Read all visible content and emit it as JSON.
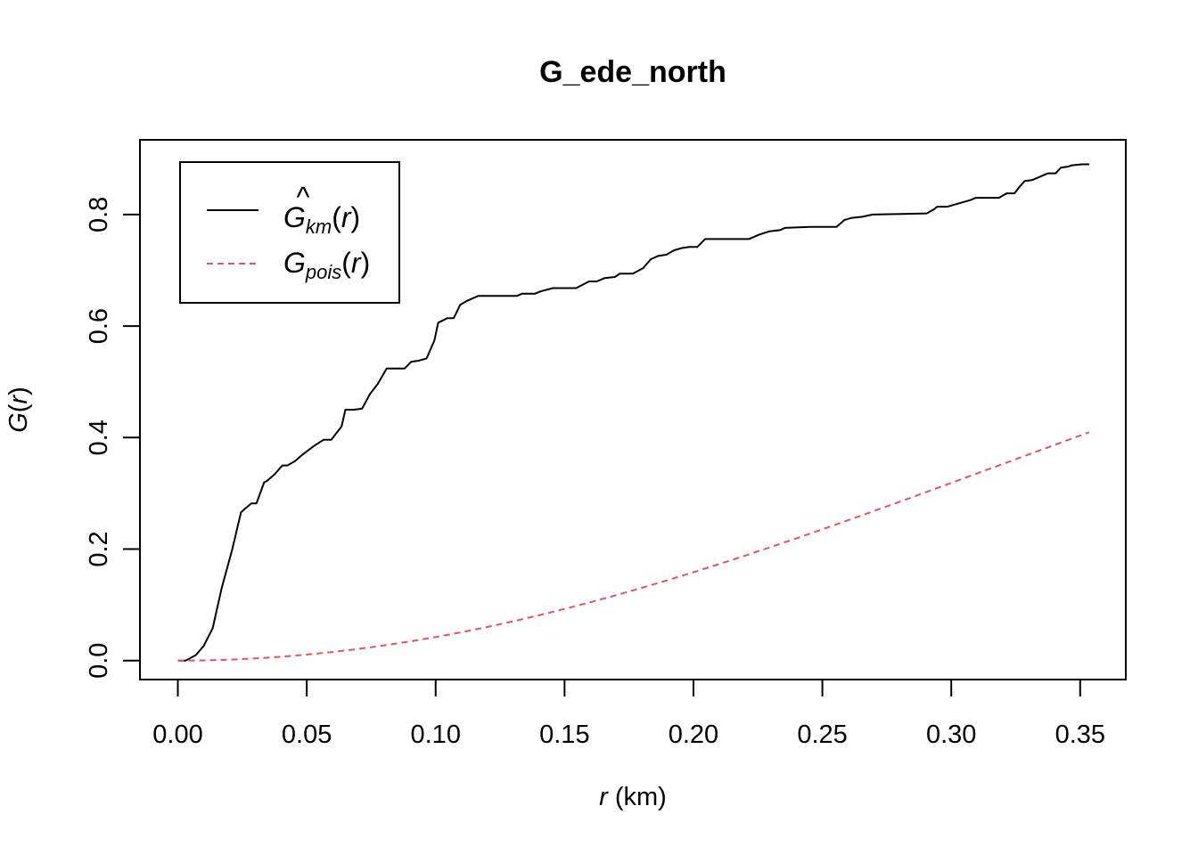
{
  "chart_data": {
    "type": "line",
    "title": "G_ede_north",
    "xlabel": {
      "var": "r",
      "unit": " (km)"
    },
    "ylabel": {
      "main": "G",
      "paren_open": "(",
      "var": "r",
      "paren_close": ")"
    },
    "xlim": [
      -0.0147,
      0.3677
    ],
    "ylim": [
      -0.034,
      0.934
    ],
    "xticks": [
      0.0,
      0.05,
      0.1,
      0.15,
      0.2,
      0.25,
      0.3,
      0.35
    ],
    "xtick_labels": [
      "0.00",
      "0.05",
      "0.10",
      "0.15",
      "0.20",
      "0.25",
      "0.30",
      "0.35"
    ],
    "yticks": [
      0.0,
      0.2,
      0.4,
      0.6,
      0.8
    ],
    "ytick_labels": [
      "0.0",
      "0.2",
      "0.4",
      "0.6",
      "0.8"
    ],
    "legend_position": "top-left",
    "grid": false,
    "series": [
      {
        "name": "G km (r)",
        "legend": {
          "main": "G",
          "hat": "^",
          "sub": "km",
          "paren_open": "(",
          "var": "r",
          "paren_close": ")"
        },
        "color": "#000000",
        "dash": "solid",
        "x": [
          0.0,
          0.003,
          0.007,
          0.01,
          0.0135,
          0.017,
          0.021,
          0.0245,
          0.026,
          0.0285,
          0.0305,
          0.0335,
          0.0345,
          0.0375,
          0.0405,
          0.0425,
          0.0455,
          0.048,
          0.0525,
          0.0565,
          0.0595,
          0.0635,
          0.065,
          0.0685,
          0.0715,
          0.0745,
          0.0775,
          0.081,
          0.0855,
          0.088,
          0.0905,
          0.0935,
          0.0965,
          0.0995,
          0.101,
          0.1045,
          0.107,
          0.1095,
          0.1125,
          0.1165,
          0.1205,
          0.1315,
          0.1335,
          0.1385,
          0.1405,
          0.1455,
          0.1515,
          0.1545,
          0.1595,
          0.1625,
          0.1655,
          0.1695,
          0.1715,
          0.1765,
          0.1805,
          0.1835,
          0.1865,
          0.1895,
          0.1925,
          0.1955,
          0.1985,
          0.2015,
          0.2045,
          0.2125,
          0.2215,
          0.2255,
          0.2295,
          0.2335,
          0.2355,
          0.2455,
          0.2555,
          0.2585,
          0.2615,
          0.2655,
          0.2695,
          0.2905,
          0.2935,
          0.2945,
          0.2985,
          0.3015,
          0.3075,
          0.3095,
          0.3185,
          0.3215,
          0.3245,
          0.3265,
          0.3285,
          0.3315,
          0.3345,
          0.3375,
          0.3405,
          0.3425,
          0.3455,
          0.3465,
          0.3505,
          0.3535
        ],
        "y": [
          0.0,
          0.0,
          0.01,
          0.026,
          0.058,
          0.13,
          0.198,
          0.266,
          0.272,
          0.282,
          0.282,
          0.32,
          0.322,
          0.334,
          0.35,
          0.35,
          0.358,
          0.368,
          0.384,
          0.396,
          0.396,
          0.42,
          0.45,
          0.45,
          0.452,
          0.478,
          0.496,
          0.524,
          0.524,
          0.524,
          0.536,
          0.538,
          0.542,
          0.574,
          0.606,
          0.614,
          0.614,
          0.638,
          0.646,
          0.654,
          0.654,
          0.654,
          0.658,
          0.658,
          0.662,
          0.668,
          0.668,
          0.668,
          0.68,
          0.68,
          0.686,
          0.688,
          0.694,
          0.694,
          0.704,
          0.72,
          0.726,
          0.728,
          0.736,
          0.74,
          0.742,
          0.742,
          0.756,
          0.756,
          0.756,
          0.764,
          0.77,
          0.772,
          0.776,
          0.778,
          0.778,
          0.79,
          0.794,
          0.796,
          0.8,
          0.802,
          0.81,
          0.814,
          0.814,
          0.818,
          0.826,
          0.83,
          0.83,
          0.838,
          0.838,
          0.85,
          0.86,
          0.862,
          0.868,
          0.874,
          0.874,
          0.884,
          0.886,
          0.888,
          0.89,
          0.89
        ]
      },
      {
        "name": "G pois (r)",
        "legend": {
          "main": "G",
          "hat": "",
          "sub": "pois",
          "paren_open": "(",
          "var": "r",
          "paren_close": ")"
        },
        "color": "#df536b",
        "dash": "dashed",
        "x": [
          0.0,
          0.01,
          0.02,
          0.03,
          0.04,
          0.05,
          0.06,
          0.07,
          0.08,
          0.09,
          0.1,
          0.11,
          0.12,
          0.13,
          0.14,
          0.15,
          0.16,
          0.17,
          0.18,
          0.19,
          0.2,
          0.21,
          0.22,
          0.23,
          0.24,
          0.25,
          0.26,
          0.27,
          0.28,
          0.29,
          0.3,
          0.31,
          0.32,
          0.33,
          0.34,
          0.3535
        ],
        "y": [
          0.0,
          0.0004,
          0.0017,
          0.0039,
          0.0069,
          0.0108,
          0.0154,
          0.0209,
          0.0272,
          0.0343,
          0.0422,
          0.0508,
          0.0602,
          0.0703,
          0.0811,
          0.0926,
          0.1046,
          0.1173,
          0.1305,
          0.1443,
          0.1585,
          0.1731,
          0.1882,
          0.2037,
          0.2194,
          0.2355,
          0.2518,
          0.2683,
          0.2849,
          0.3018,
          0.3187,
          0.3356,
          0.3526,
          0.3696,
          0.3866,
          0.4094
        ]
      }
    ]
  }
}
